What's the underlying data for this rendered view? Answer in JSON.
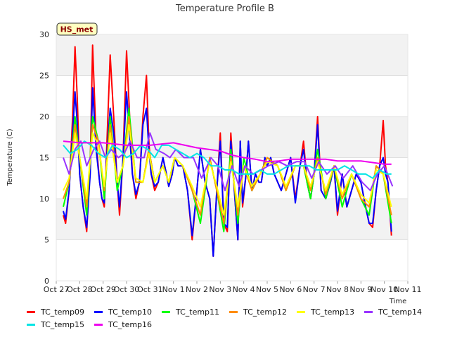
{
  "chart_data": {
    "type": "line",
    "title": "Temperature Profile B",
    "ylabel": "Temperature (C)",
    "xlabel": "Time",
    "annotation": "HS_met",
    "ylim": [
      0,
      30
    ],
    "yticks": [
      0,
      5,
      10,
      15,
      20,
      25,
      30
    ],
    "xlim": [
      0,
      15
    ],
    "xticks": [
      "Oct 27",
      "Oct 28",
      "Oct 29",
      "Oct 30",
      "Oct 31",
      "Nov 1",
      "Nov 2",
      "Nov 3",
      "Nov 4",
      "Nov 5",
      "Nov 6",
      "Nov 7",
      "Nov 8",
      "Nov 9",
      "Nov 10",
      "Nov 11"
    ],
    "grid": true,
    "legend_position": "bottom",
    "series": [
      {
        "name": "TC_temp09",
        "color": "#ff0000",
        "x": [
          0.3,
          0.4,
          0.55,
          0.7,
          0.8,
          0.9,
          1.0,
          1.15,
          1.3,
          1.45,
          1.55,
          1.7,
          1.85,
          1.95,
          2.05,
          2.15,
          2.3,
          2.45,
          2.6,
          2.7,
          2.85,
          3.0,
          3.1,
          3.25,
          3.4,
          3.55,
          3.7,
          3.85,
          3.95,
          4.05,
          4.2,
          4.35,
          4.55,
          4.7,
          4.8,
          4.95,
          5.05,
          5.2,
          5.4,
          5.6,
          5.8,
          6.0,
          6.15,
          6.35,
          6.55,
          6.7,
          6.85,
          7.0,
          7.15,
          7.3,
          7.45,
          7.6,
          7.75,
          7.85,
          7.95,
          8.1,
          8.2,
          8.35,
          8.5,
          8.65,
          8.75,
          8.9,
          9.0,
          9.15,
          9.3,
          9.45,
          9.6,
          9.8,
          10.0,
          10.2,
          10.4,
          10.55,
          10.7,
          10.85,
          11.0,
          11.15,
          11.3,
          11.5,
          11.7,
          11.85,
          12.0,
          12.2,
          12.4,
          12.6,
          12.8,
          13.0,
          13.2,
          13.35,
          13.5,
          13.65,
          13.8,
          13.95,
          14.05,
          14.15,
          14.3
        ],
        "y": [
          8,
          7,
          11,
          20,
          28.5,
          22,
          13,
          9,
          6,
          14,
          28.7,
          17,
          12,
          10,
          9,
          16,
          27.5,
          20,
          12,
          8,
          15,
          28,
          22,
          13,
          10,
          12,
          20,
          25,
          17,
          13,
          11,
          12,
          15,
          13,
          11.5,
          13,
          15,
          14,
          14,
          11,
          5,
          11,
          16,
          12,
          10,
          3,
          11,
          18,
          7,
          6,
          18,
          11,
          5,
          17,
          9,
          13,
          17,
          11,
          13,
          12,
          12,
          15,
          14,
          15,
          13,
          12,
          11,
          13,
          15,
          10,
          14,
          17,
          12,
          10,
          13,
          20,
          11,
          10,
          12,
          14,
          8,
          13,
          9,
          11,
          13,
          12,
          9,
          7,
          6.5,
          11,
          14,
          19.5,
          14,
          12,
          5.5
        ]
      },
      {
        "name": "TC_temp10",
        "color": "#0000ff",
        "x": [
          0.3,
          0.4,
          0.55,
          0.7,
          0.8,
          0.9,
          1.0,
          1.15,
          1.3,
          1.45,
          1.55,
          1.7,
          1.85,
          1.95,
          2.05,
          2.15,
          2.3,
          2.45,
          2.6,
          2.7,
          2.85,
          3.0,
          3.1,
          3.25,
          3.4,
          3.55,
          3.7,
          3.85,
          3.95,
          4.05,
          4.2,
          4.35,
          4.55,
          4.7,
          4.8,
          4.95,
          5.05,
          5.2,
          5.4,
          5.6,
          5.8,
          6.0,
          6.15,
          6.35,
          6.55,
          6.7,
          6.85,
          7.0,
          7.15,
          7.3,
          7.45,
          7.6,
          7.75,
          7.85,
          7.95,
          8.1,
          8.2,
          8.35,
          8.5,
          8.65,
          8.75,
          8.9,
          9.0,
          9.15,
          9.3,
          9.45,
          9.6,
          9.8,
          10.0,
          10.2,
          10.4,
          10.55,
          10.7,
          10.85,
          11.0,
          11.15,
          11.3,
          11.5,
          11.7,
          11.85,
          12.0,
          12.2,
          12.4,
          12.6,
          12.8,
          13.0,
          13.2,
          13.35,
          13.5,
          13.65,
          13.8,
          13.95,
          14.05,
          14.15,
          14.3
        ],
        "y": [
          8.5,
          7.5,
          11,
          18,
          23,
          19,
          13,
          9,
          6.5,
          13,
          23.5,
          16,
          12,
          10,
          9.5,
          15,
          21,
          18,
          12,
          9,
          15,
          23,
          19,
          13,
          10.5,
          12,
          19,
          21,
          16,
          13,
          11.5,
          12,
          15,
          13,
          11.5,
          13,
          15,
          14,
          14,
          11,
          5.5,
          11,
          16,
          12,
          10,
          3,
          11,
          17,
          7,
          6.5,
          17,
          11,
          5,
          17,
          9.5,
          13,
          17,
          11,
          13,
          12,
          12,
          15,
          14,
          15,
          13,
          12,
          11,
          13,
          15,
          9.5,
          14,
          16,
          12,
          10,
          13,
          19,
          11,
          10,
          12,
          14,
          8.5,
          13,
          9,
          11,
          13,
          12,
          9,
          7,
          7,
          11,
          14,
          15,
          13,
          12,
          6
        ]
      },
      {
        "name": "TC_temp11",
        "color": "#00ff00",
        "x": [
          0.3,
          0.55,
          0.8,
          1.0,
          1.3,
          1.55,
          1.8,
          2.05,
          2.3,
          2.6,
          2.85,
          3.1,
          3.4,
          3.7,
          3.95,
          4.2,
          4.55,
          4.8,
          5.05,
          5.4,
          5.8,
          6.15,
          6.55,
          6.85,
          7.15,
          7.45,
          7.75,
          8.0,
          8.35,
          8.7,
          9.0,
          9.45,
          9.8,
          10.2,
          10.55,
          10.85,
          11.15,
          11.5,
          11.85,
          12.2,
          12.6,
          13.0,
          13.35,
          13.65,
          13.95,
          14.3
        ],
        "y": [
          9,
          12,
          20,
          15,
          8,
          20,
          17,
          10,
          20,
          11,
          14,
          21,
          12,
          12,
          16,
          12,
          14,
          12,
          15,
          14,
          11,
          7,
          15,
          11,
          6,
          16,
          7,
          15,
          11,
          13,
          15,
          14,
          11,
          14,
          14,
          10,
          16,
          10,
          14,
          9,
          13,
          10,
          8,
          14,
          13,
          7
        ]
      },
      {
        "name": "TC_temp12",
        "color": "#ff8c00",
        "x": [
          0.3,
          0.55,
          0.8,
          1.0,
          1.3,
          1.55,
          1.8,
          2.05,
          2.3,
          2.6,
          2.85,
          3.1,
          3.4,
          3.7,
          3.95,
          4.2,
          4.55,
          4.8,
          5.05,
          5.4,
          5.8,
          6.15,
          6.55,
          6.85,
          7.15,
          7.45,
          7.75,
          8.0,
          8.35,
          8.7,
          9.0,
          9.45,
          9.8,
          10.2,
          10.55,
          10.85,
          11.15,
          11.5,
          11.85,
          12.2,
          12.6,
          13.0,
          13.35,
          13.65,
          13.95,
          14.3
        ],
        "y": [
          10,
          12,
          19,
          15,
          9,
          19,
          17,
          11,
          19,
          12,
          14,
          20,
          12,
          12,
          16,
          12,
          14,
          12,
          15,
          14,
          11,
          8,
          15,
          11,
          7,
          15,
          8,
          14,
          11,
          13,
          15,
          14,
          11,
          14,
          14,
          11,
          15,
          10.5,
          14,
          10,
          13,
          10,
          9,
          14,
          13,
          8
        ]
      },
      {
        "name": "TC_temp13",
        "color": "#ffff00",
        "x": [
          0.3,
          0.55,
          0.8,
          1.0,
          1.3,
          1.55,
          1.8,
          2.05,
          2.3,
          2.6,
          2.85,
          3.1,
          3.4,
          3.7,
          3.95,
          4.2,
          4.55,
          4.8,
          5.05,
          5.4,
          5.8,
          6.15,
          6.55,
          6.85,
          7.15,
          7.45,
          7.75,
          8.0,
          8.35,
          8.7,
          9.0,
          9.45,
          9.8,
          10.2,
          10.55,
          10.85,
          11.15,
          11.5,
          11.85,
          12.2,
          12.6,
          13.0,
          13.35,
          13.65,
          13.95,
          14.3
        ],
        "y": [
          11,
          12.5,
          18,
          15,
          10,
          18,
          16.5,
          11.5,
          18,
          12,
          14,
          19,
          12.5,
          12,
          15.5,
          12,
          14,
          12,
          15,
          14,
          11.5,
          9,
          14.5,
          11.5,
          8,
          14.5,
          9,
          14,
          11.5,
          13,
          14.5,
          14,
          11.5,
          14,
          14,
          11.5,
          14.5,
          11,
          14,
          10.5,
          13,
          10.5,
          9.5,
          13.5,
          13,
          9
        ]
      },
      {
        "name": "TC_temp14",
        "color": "#9933ff",
        "x": [
          0.3,
          0.55,
          0.8,
          1.05,
          1.3,
          1.6,
          1.85,
          2.1,
          2.35,
          2.65,
          2.9,
          3.15,
          3.45,
          3.75,
          4.0,
          4.25,
          4.6,
          4.85,
          5.1,
          5.45,
          5.85,
          6.2,
          6.6,
          6.9,
          7.2,
          7.5,
          7.8,
          8.05,
          8.4,
          8.75,
          9.05,
          9.5,
          9.85,
          10.25,
          10.6,
          10.9,
          11.2,
          11.55,
          11.9,
          12.25,
          12.65,
          13.05,
          13.4,
          13.7,
          14.0,
          14.35
        ],
        "y": [
          15,
          13,
          16,
          17,
          14,
          16,
          17,
          15,
          16,
          15,
          15.5,
          17,
          15,
          15,
          18,
          16,
          15.5,
          15,
          16,
          15,
          15,
          12.5,
          15,
          14,
          11,
          14,
          11.5,
          14,
          13,
          13.5,
          14,
          14.5,
          14,
          14.5,
          14.5,
          12.5,
          14.5,
          13,
          14,
          12.5,
          14,
          12,
          11,
          13,
          14,
          11.5
        ]
      },
      {
        "name": "TC_temp15",
        "color": "#00e5e5",
        "x": [
          0.3,
          0.6,
          0.9,
          1.2,
          1.5,
          1.8,
          2.1,
          2.4,
          2.7,
          3.0,
          3.3,
          3.6,
          3.9,
          4.2,
          4.5,
          4.8,
          5.1,
          5.4,
          5.7,
          6.0,
          6.3,
          6.6,
          6.9,
          7.2,
          7.5,
          7.8,
          8.1,
          8.4,
          8.7,
          9.0,
          9.3,
          9.6,
          9.9,
          10.2,
          10.5,
          10.8,
          11.1,
          11.4,
          11.7,
          12.0,
          12.3,
          12.6,
          12.9,
          13.2,
          13.5,
          13.8,
          14.1,
          14.3
        ],
        "y": [
          16.5,
          15.5,
          16,
          17,
          16.5,
          15.5,
          15,
          16.5,
          16,
          15,
          15.5,
          16.5,
          16,
          15,
          16.5,
          16.5,
          16,
          15.5,
          15,
          15.5,
          15,
          14,
          14,
          13.5,
          13.5,
          13,
          13,
          13,
          13.5,
          13,
          13,
          13.5,
          14,
          14,
          14,
          14,
          13.5,
          13.5,
          13.5,
          13.5,
          14,
          13.5,
          13,
          13,
          12.5,
          13.5,
          13,
          13
        ]
      },
      {
        "name": "TC_temp16",
        "color": "#ee00ee",
        "x": [
          0.3,
          1.0,
          2.0,
          3.0,
          4.0,
          5.0,
          6.0,
          6.5,
          7.0,
          7.5,
          8.0,
          8.5,
          9.0,
          9.5,
          10.0,
          10.5,
          11.0,
          11.5,
          12.0,
          12.5,
          13.0,
          13.5,
          14.0,
          14.3
        ],
        "y": [
          17,
          16.8,
          16.8,
          16.5,
          16.5,
          16.8,
          16.2,
          16,
          15.8,
          15.3,
          15,
          14.8,
          14.5,
          14.6,
          14.8,
          14.8,
          14.8,
          14.8,
          14.6,
          14.6,
          14.6,
          14.4,
          14.2,
          14.2
        ]
      }
    ]
  }
}
